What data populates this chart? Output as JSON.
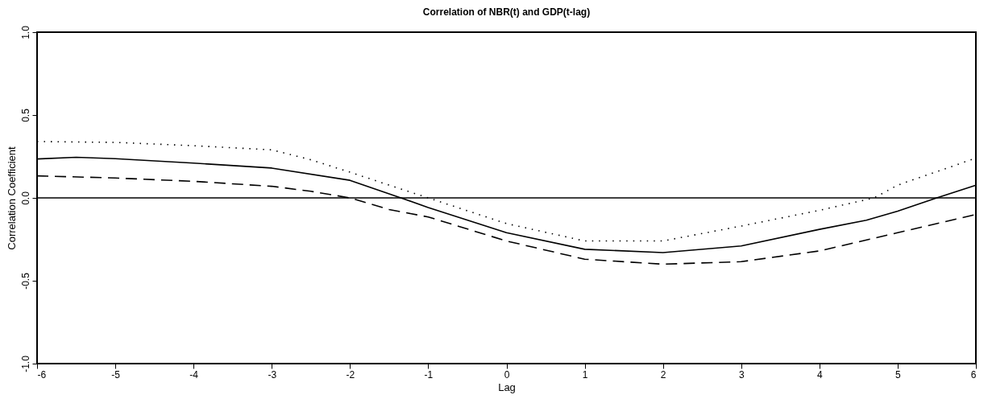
{
  "chart_data": {
    "type": "line",
    "title": "Correlation of NBR(t) and GDP(t-lag)",
    "xlabel": "Lag",
    "ylabel": "Correlation Coefficient",
    "xlim": [
      -6,
      6
    ],
    "xticks": [
      -6,
      -5,
      -4,
      -3,
      -2,
      -1,
      0,
      1,
      2,
      3,
      4,
      5,
      6
    ],
    "ylim": [
      -1,
      1
    ],
    "yticks": [
      {
        "value": -1,
        "label": "-1.0"
      },
      {
        "value": -0.5,
        "label": "-0.5"
      },
      {
        "value": 0,
        "label": "0.0"
      },
      {
        "value": 0.5,
        "label": "0.5"
      },
      {
        "value": 1,
        "label": "1.0"
      }
    ],
    "grid": false,
    "marker": "none",
    "ref_lines": [
      {
        "axis": "y",
        "value": 0,
        "color": "#000000",
        "line_style": "solid"
      }
    ],
    "series": [
      {
        "color": "#000000",
        "line_style": "solid",
        "x": [
          -6,
          -5.5,
          -5,
          -4,
          -3,
          -2,
          -1.35,
          -1,
          0,
          1,
          2,
          3,
          4,
          4.6,
          5,
          5.5,
          6
        ],
        "values": [
          0.235,
          0.245,
          0.237,
          0.21,
          0.18,
          0.106,
          0,
          -0.058,
          -0.21,
          -0.31,
          -0.33,
          -0.29,
          -0.19,
          -0.135,
          -0.08,
          0,
          0.077
        ]
      },
      {
        "color": "#000000",
        "line_style": "dotted",
        "x": [
          -6,
          -5,
          -4,
          -3,
          -2.5,
          -2,
          -1.5,
          -1,
          0,
          1,
          2,
          3,
          4,
          4.7,
          5,
          6
        ],
        "values": [
          0.34,
          0.335,
          0.315,
          0.29,
          0.23,
          0.155,
          0.077,
          0,
          -0.155,
          -0.26,
          -0.26,
          -0.17,
          -0.075,
          0,
          0.077,
          0.24
        ]
      },
      {
        "color": "#000000",
        "line_style": "dashed",
        "x": [
          -6,
          -5,
          -4,
          -3,
          -2.5,
          -2,
          -1.5,
          -1,
          0,
          1,
          2,
          3,
          4,
          5,
          6
        ],
        "values": [
          0.133,
          0.12,
          0.1,
          0.07,
          0.04,
          0,
          -0.07,
          -0.115,
          -0.26,
          -0.37,
          -0.4,
          -0.385,
          -0.32,
          -0.21,
          -0.1
        ]
      }
    ]
  }
}
